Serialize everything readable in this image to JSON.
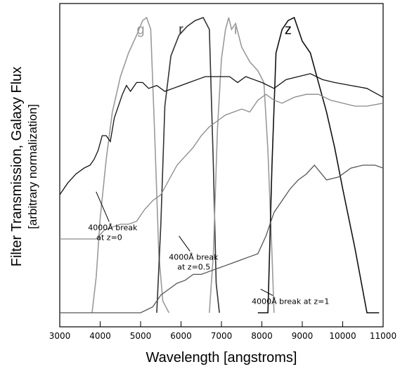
{
  "chart_data": {
    "type": "line",
    "title": "",
    "xlabel": "Wavelength [angstroms]",
    "ylabel_line1": "Filter Transmission, Galaxy Flux",
    "ylabel_line2": "[arbitrary normalization]",
    "xlim": [
      3000,
      11000
    ],
    "ylim": [
      0,
      1
    ],
    "grid": false,
    "x_ticks": [
      3000,
      4000,
      5000,
      6000,
      7000,
      8000,
      9000,
      10000,
      11000
    ],
    "band_labels": [
      {
        "text": "g",
        "x": 5000,
        "y": 0.975,
        "color": "#999999"
      },
      {
        "text": "r",
        "x": 6000,
        "y": 0.975,
        "color": "#333333"
      },
      {
        "text": "i",
        "x": 7350,
        "y": 0.975,
        "color": "#999999"
      },
      {
        "text": "z",
        "x": 8650,
        "y": 0.975,
        "color": "#000000"
      }
    ],
    "filters": [
      {
        "name": "g",
        "color": "#9a9a9a",
        "width": 1.6,
        "points": [
          [
            3800,
            0
          ],
          [
            3900,
            0.12
          ],
          [
            4000,
            0.32
          ],
          [
            4150,
            0.52
          ],
          [
            4300,
            0.68
          ],
          [
            4500,
            0.8
          ],
          [
            4700,
            0.88
          ],
          [
            4900,
            0.94
          ],
          [
            5050,
            0.99
          ],
          [
            5150,
            1.0
          ],
          [
            5250,
            0.96
          ],
          [
            5350,
            0.6
          ],
          [
            5450,
            0.2
          ],
          [
            5550,
            0.04
          ],
          [
            5700,
            0
          ]
        ]
      },
      {
        "name": "r",
        "color": "#333333",
        "width": 1.6,
        "points": [
          [
            5400,
            0
          ],
          [
            5500,
            0.3
          ],
          [
            5600,
            0.7
          ],
          [
            5750,
            0.87
          ],
          [
            5950,
            0.94
          ],
          [
            6150,
            0.97
          ],
          [
            6350,
            0.99
          ],
          [
            6550,
            1.0
          ],
          [
            6700,
            0.96
          ],
          [
            6800,
            0.5
          ],
          [
            6870,
            0.1
          ],
          [
            6950,
            0
          ]
        ]
      },
      {
        "name": "i",
        "color": "#9a9a9a",
        "width": 1.6,
        "points": [
          [
            6700,
            0
          ],
          [
            6800,
            0.2
          ],
          [
            6900,
            0.62
          ],
          [
            7000,
            0.86
          ],
          [
            7100,
            0.96
          ],
          [
            7180,
            1.0
          ],
          [
            7250,
            0.96
          ],
          [
            7350,
            0.98
          ],
          [
            7500,
            0.9
          ],
          [
            7700,
            0.85
          ],
          [
            7900,
            0.82
          ],
          [
            8050,
            0.78
          ],
          [
            8150,
            0.55
          ],
          [
            8250,
            0.2
          ],
          [
            8300,
            0
          ]
        ]
      },
      {
        "name": "z",
        "color": "#111111",
        "width": 1.6,
        "points": [
          [
            7900,
            0.0
          ],
          [
            8150,
            0.0
          ],
          [
            8250,
            0.5
          ],
          [
            8350,
            0.88
          ],
          [
            8500,
            0.96
          ],
          [
            8650,
            0.99
          ],
          [
            8800,
            1.0
          ],
          [
            9000,
            0.92
          ],
          [
            9200,
            0.88
          ],
          [
            9400,
            0.78
          ],
          [
            9600,
            0.68
          ],
          [
            9800,
            0.56
          ],
          [
            10000,
            0.42
          ],
          [
            10300,
            0.22
          ],
          [
            10600,
            0.0
          ],
          [
            10900,
            0.0
          ]
        ]
      }
    ],
    "galaxy_spectra": [
      {
        "name": "",
        "color": "#111111",
        "width": 1.3,
        "points": [
          [
            3000,
            0.4
          ],
          [
            3200,
            0.44
          ],
          [
            3400,
            0.47
          ],
          [
            3600,
            0.49
          ],
          [
            3750,
            0.5
          ],
          [
            3850,
            0.52
          ],
          [
            3950,
            0.55
          ],
          [
            4050,
            0.6
          ],
          [
            4150,
            0.6
          ],
          [
            4250,
            0.58
          ],
          [
            4350,
            0.66
          ],
          [
            4450,
            0.7
          ],
          [
            4550,
            0.74
          ],
          [
            4650,
            0.77
          ],
          [
            4750,
            0.75
          ],
          [
            4900,
            0.78
          ],
          [
            5050,
            0.78
          ],
          [
            5200,
            0.76
          ],
          [
            5400,
            0.77
          ],
          [
            5600,
            0.75
          ],
          [
            5800,
            0.76
          ],
          [
            6000,
            0.77
          ],
          [
            6200,
            0.78
          ],
          [
            6400,
            0.79
          ],
          [
            6600,
            0.8
          ],
          [
            6800,
            0.8
          ],
          [
            7000,
            0.8
          ],
          [
            7200,
            0.8
          ],
          [
            7400,
            0.78
          ],
          [
            7600,
            0.8
          ],
          [
            7800,
            0.79
          ],
          [
            8000,
            0.78
          ],
          [
            8300,
            0.76
          ],
          [
            8600,
            0.79
          ],
          [
            8900,
            0.8
          ],
          [
            9200,
            0.81
          ],
          [
            9500,
            0.79
          ],
          [
            9800,
            0.78
          ],
          [
            10200,
            0.77
          ],
          [
            10600,
            0.76
          ],
          [
            11000,
            0.73
          ]
        ]
      },
      {
        "name": "",
        "color": "#8a8a8a",
        "width": 1.3,
        "points": [
          [
            3000,
            0.25
          ],
          [
            3400,
            0.25
          ],
          [
            3700,
            0.25
          ],
          [
            3900,
            0.25
          ],
          [
            4100,
            0.28
          ],
          [
            4300,
            0.29
          ],
          [
            4500,
            0.3
          ],
          [
            4700,
            0.3
          ],
          [
            4900,
            0.31
          ],
          [
            5100,
            0.35
          ],
          [
            5300,
            0.38
          ],
          [
            5500,
            0.4
          ],
          [
            5700,
            0.45
          ],
          [
            5900,
            0.5
          ],
          [
            6100,
            0.53
          ],
          [
            6300,
            0.56
          ],
          [
            6500,
            0.6
          ],
          [
            6700,
            0.63
          ],
          [
            6900,
            0.65
          ],
          [
            7100,
            0.67
          ],
          [
            7300,
            0.68
          ],
          [
            7500,
            0.69
          ],
          [
            7700,
            0.68
          ],
          [
            7900,
            0.72
          ],
          [
            8100,
            0.74
          ],
          [
            8300,
            0.72
          ],
          [
            8500,
            0.71
          ],
          [
            8800,
            0.73
          ],
          [
            9100,
            0.74
          ],
          [
            9400,
            0.74
          ],
          [
            9700,
            0.72
          ],
          [
            10000,
            0.71
          ],
          [
            10300,
            0.7
          ],
          [
            10600,
            0.7
          ],
          [
            11000,
            0.71
          ]
        ]
      },
      {
        "name": "",
        "color": "#555555",
        "width": 1.3,
        "points": [
          [
            3000,
            0.0
          ],
          [
            3500,
            0.0
          ],
          [
            4000,
            0.0
          ],
          [
            4500,
            0.0
          ],
          [
            5000,
            0.0
          ],
          [
            5300,
            0.02
          ],
          [
            5500,
            0.06
          ],
          [
            5700,
            0.08
          ],
          [
            5900,
            0.1
          ],
          [
            6100,
            0.11
          ],
          [
            6300,
            0.13
          ],
          [
            6500,
            0.13
          ],
          [
            6700,
            0.14
          ],
          [
            6900,
            0.15
          ],
          [
            7100,
            0.16
          ],
          [
            7300,
            0.17
          ],
          [
            7500,
            0.18
          ],
          [
            7700,
            0.19
          ],
          [
            7900,
            0.2
          ],
          [
            8100,
            0.26
          ],
          [
            8300,
            0.34
          ],
          [
            8500,
            0.38
          ],
          [
            8700,
            0.42
          ],
          [
            8900,
            0.45
          ],
          [
            9100,
            0.47
          ],
          [
            9300,
            0.5
          ],
          [
            9600,
            0.45
          ],
          [
            9900,
            0.46
          ],
          [
            10200,
            0.49
          ],
          [
            10500,
            0.5
          ],
          [
            10800,
            0.5
          ],
          [
            11000,
            0.49
          ]
        ]
      }
    ],
    "annotations": [
      {
        "lines": [
          "4000Å break",
          "at z=0"
        ],
        "x": 3700,
        "y": 0.28,
        "arrow_to": [
          3900,
          0.41
        ]
      },
      {
        "lines": [
          "4000Å break",
          "at z=0.5"
        ],
        "x": 5700,
        "y": 0.18,
        "arrow_to": [
          5950,
          0.26
        ]
      },
      {
        "lines": [
          "4000Å break at z=1"
        ],
        "x": 7750,
        "y": 0.03,
        "arrow_to": [
          7970,
          0.08
        ]
      }
    ]
  }
}
